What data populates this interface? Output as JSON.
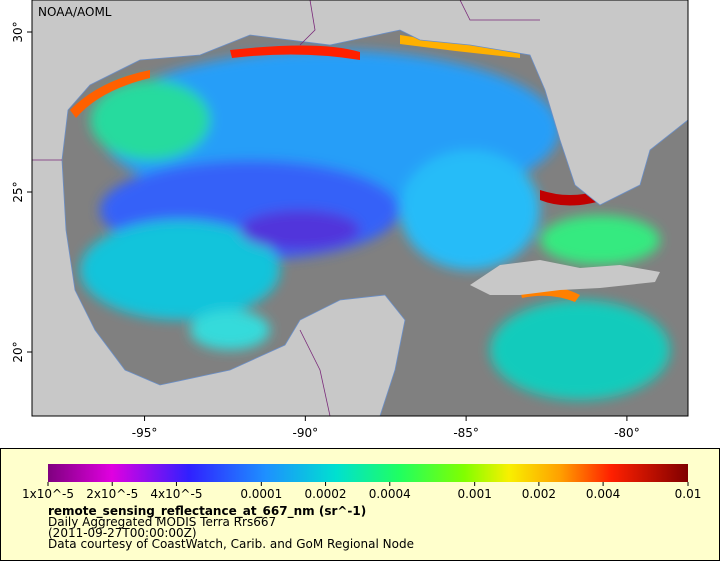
{
  "map": {
    "credit": "NOAA/AOML",
    "xlim": [
      -98.5,
      -78.1
    ],
    "ylim": [
      18,
      31
    ],
    "xticks": [
      {
        "value": -95,
        "label": "-95°"
      },
      {
        "value": -90,
        "label": "-90°"
      },
      {
        "value": -85,
        "label": "-85°"
      },
      {
        "value": -80,
        "label": "-80°"
      }
    ],
    "yticks": [
      {
        "value": 20,
        "label": "20°"
      },
      {
        "value": 25,
        "label": "25°"
      },
      {
        "value": 30,
        "label": "30°"
      }
    ]
  },
  "legend": {
    "scale": "log",
    "range": [
      1e-05,
      0.01
    ],
    "ticks": [
      {
        "value": 1e-05,
        "label": "1x10^-5"
      },
      {
        "value": 2e-05,
        "label": "2x10^-5"
      },
      {
        "value": 4e-05,
        "label": "4x10^-5"
      },
      0.0001,
      0.0002,
      0.0004,
      0.001,
      0.002,
      0.004,
      0.01
    ],
    "title": "remote_sensing_reflectance_at_667_nm (sr^-1)",
    "lines": [
      "Daily Aggregated MODIS Terra Rrs667",
      "(2011-09-27T00:00:00Z)",
      "Data courtesy of CoastWatch, Carib. and GoM Regional Node"
    ]
  }
}
